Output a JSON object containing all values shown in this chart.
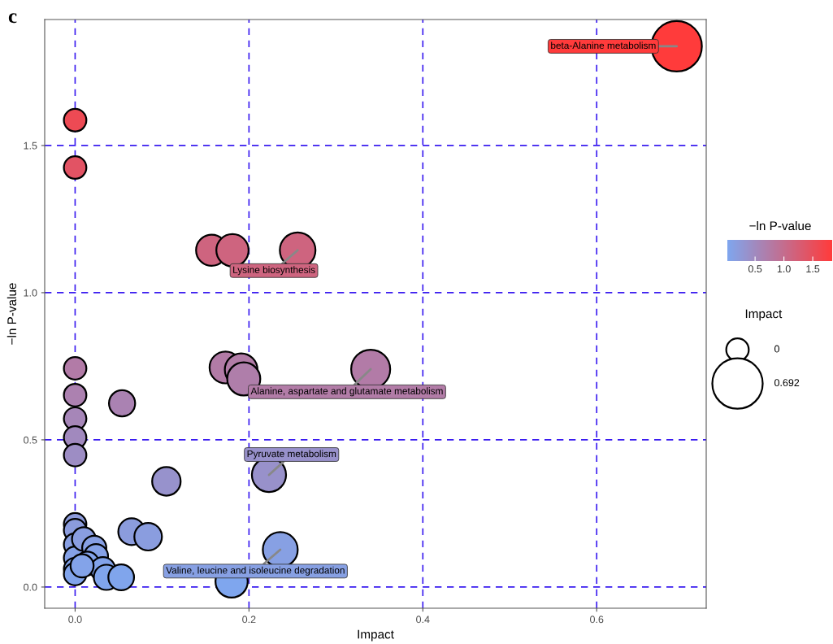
{
  "chart_data": {
    "type": "bubble",
    "title": "c",
    "xlabel": "Impact",
    "ylabel": "−ln P-value",
    "clabel": "−ln P-value",
    "legend_title": "Impact",
    "x": [
      0.692,
      0,
      0,
      0.157,
      0.181,
      0.256,
      0,
      0,
      0,
      0,
      0,
      0.054,
      0.173,
      0.191,
      0.194,
      0.34,
      0.105,
      0.223,
      0.236,
      0.18,
      0.065,
      0.084,
      0,
      0,
      0,
      0,
      0,
      0,
      0.01,
      0.022,
      0.024,
      0.014,
      0.032,
      0.036,
      0.053,
      0.008
    ],
    "values": [
      1.837,
      1.586,
      1.425,
      1.144,
      1.144,
      1.144,
      0.743,
      0.652,
      0.572,
      0.508,
      0.448,
      0.624,
      0.746,
      0.738,
      0.707,
      0.74,
      0.359,
      0.381,
      0.127,
      0.019,
      0.188,
      0.171,
      0.213,
      0.193,
      0.144,
      0.099,
      0.061,
      0.044,
      0.163,
      0.133,
      0.105,
      0.08,
      0.06,
      0.033,
      0.033,
      0.072
    ],
    "sizes": [
      1.0,
      0.2,
      0.2,
      0.38,
      0.41,
      0.5,
      0.2,
      0.2,
      0.2,
      0.2,
      0.2,
      0.27,
      0.4,
      0.42,
      0.43,
      0.6,
      0.32,
      0.46,
      0.48,
      0.41,
      0.28,
      0.3,
      0.2,
      0.2,
      0.2,
      0.2,
      0.2,
      0.2,
      0.22,
      0.23,
      0.23,
      0.22,
      0.24,
      0.25,
      0.26,
      0.21
    ],
    "cvalues": [
      1.837,
      1.586,
      1.425,
      1.144,
      1.144,
      1.144,
      0.743,
      0.652,
      0.572,
      0.508,
      0.448,
      0.624,
      0.746,
      0.738,
      0.707,
      0.74,
      0.359,
      0.381,
      0.127,
      0.019,
      0.188,
      0.171,
      0.213,
      0.193,
      0.144,
      0.099,
      0.061,
      0.044,
      0.163,
      0.133,
      0.105,
      0.08,
      0.06,
      0.033,
      0.033,
      0.072
    ],
    "colors": [
      "#ff3b3b",
      "#ed4a54",
      "#e25364",
      "#ce647f",
      "#ce647f",
      "#ce647f",
      "#b27ba7",
      "#ac81b0",
      "#a686b8",
      "#a189be",
      "#9d8dc4",
      "#aa82b2",
      "#b27ba6",
      "#b27ca7",
      "#af7eaa",
      "#b27ba7",
      "#9792cc",
      "#9891ca",
      "#87a0e3",
      "#7fa6ee",
      "#8b9cdd",
      "#8a9ddf",
      "#8d9bdb",
      "#8b9cdd",
      "#889fe2",
      "#85a1e6",
      "#82a3ea",
      "#81a4eb",
      "#899de0",
      "#879fe3",
      "#85a1e6",
      "#83a2e8",
      "#82a3ea",
      "#80a5ec",
      "#80a5ec",
      "#83a3e9"
    ],
    "clim": [
      0.019,
      1.837
    ],
    "cticks": [
      {
        "value": 0.5,
        "label": "0.5"
      },
      {
        "value": 1,
        "label": "1.0"
      },
      {
        "value": 1.5,
        "label": "1.5"
      }
    ],
    "size_legend": [
      {
        "value": 0.2,
        "label": "0"
      },
      {
        "value": 1.0,
        "label": "0.692"
      }
    ],
    "annotations": [
      {
        "text": "beta-Alanine metabolism",
        "x": 0.692,
        "y": 1.837
      },
      {
        "text": "Lysine biosynthesis",
        "x": 0.256,
        "y": 1.144
      },
      {
        "text": "Alanine, aspartate and glutamate metabolism",
        "x": 0.34,
        "y": 0.74
      },
      {
        "text": "Pyruvate metabolism",
        "x": 0.223,
        "y": 0.381
      },
      {
        "text": "Valine, leucine and isoleucine degradation",
        "x": 0.236,
        "y": 0.127
      }
    ],
    "xlim": [
      -0.035,
      0.726
    ],
    "ylim": [
      -0.072,
      1.928
    ],
    "xticks": [
      {
        "value": 0,
        "label": "0.0"
      },
      {
        "value": 0.2,
        "label": "0.2"
      },
      {
        "value": 0.4,
        "label": "0.4"
      },
      {
        "value": 0.6,
        "label": "0.6"
      }
    ],
    "yticks": [
      {
        "value": 0,
        "label": "0.0"
      },
      {
        "value": 0.5,
        "label": "0.5"
      },
      {
        "value": 1.0,
        "label": "1.0"
      },
      {
        "value": 1.5,
        "label": "1.5"
      }
    ],
    "grid": true,
    "marker": "circle"
  }
}
